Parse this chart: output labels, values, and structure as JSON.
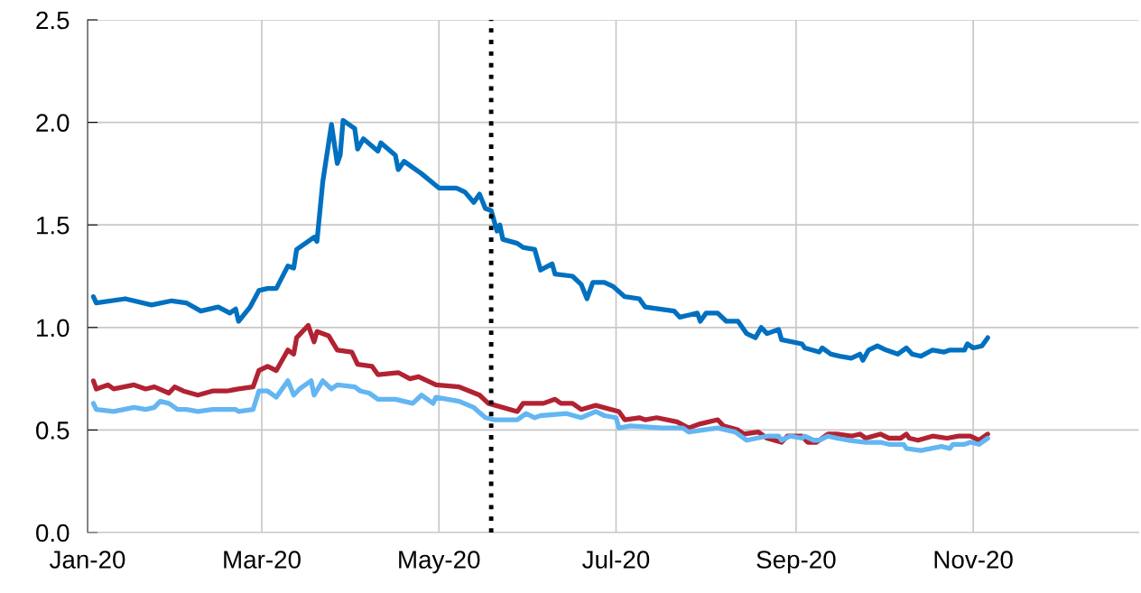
{
  "chart_data": {
    "type": "line",
    "xlim": [
      "2020-01-01",
      "2020-12-28"
    ],
    "xticks": [
      {
        "value": "2020-01-01",
        "label": "Jan-20"
      },
      {
        "value": "2020-03-01",
        "label": "Mar-20"
      },
      {
        "value": "2020-05-01",
        "label": "May-20"
      },
      {
        "value": "2020-07-01",
        "label": "Jul-20"
      },
      {
        "value": "2020-09-01",
        "label": "Sep-20"
      },
      {
        "value": "2020-11-01",
        "label": "Nov-20"
      }
    ],
    "ylim": [
      0,
      2.5
    ],
    "yticks": [
      {
        "value": 0,
        "label": "0.0"
      },
      0.5,
      {
        "value": 1,
        "label": "1.0"
      },
      1.5,
      {
        "value": 2,
        "label": "2.0"
      },
      2.5
    ],
    "grid": true,
    "marker": "none",
    "line_style": "solid",
    "ref_lines": [
      {
        "axis": "x",
        "value": "2020-05-19",
        "color": "#000000",
        "line_style": "dotted"
      }
    ],
    "series": [
      {
        "color": "#0070c0",
        "x": [
          "2020-01-03",
          "2020-01-04",
          "2020-01-14",
          "2020-01-23",
          "2020-01-30",
          "2020-02-04",
          "2020-02-09",
          "2020-02-15",
          "2020-02-19",
          "2020-02-21",
          "2020-02-22",
          "2020-02-26",
          "2020-02-29",
          "2020-03-03",
          "2020-03-06",
          "2020-03-10",
          "2020-03-12",
          "2020-03-13",
          "2020-03-19",
          "2020-03-20",
          "2020-03-22",
          "2020-03-25",
          "2020-03-27",
          "2020-03-28",
          "2020-03-29",
          "2020-04-02",
          "2020-04-03",
          "2020-04-05",
          "2020-04-10",
          "2020-04-11",
          "2020-04-16",
          "2020-04-17",
          "2020-04-19",
          "2020-04-25",
          "2020-05-01",
          "2020-05-07",
          "2020-05-10",
          "2020-05-13",
          "2020-05-15",
          "2020-05-17",
          "2020-05-19",
          "2020-05-21",
          "2020-05-22",
          "2020-05-23",
          "2020-05-28",
          "2020-05-30",
          "2020-06-03",
          "2020-06-05",
          "2020-06-09",
          "2020-06-10",
          "2020-06-16",
          "2020-06-19",
          "2020-06-21",
          "2020-06-23",
          "2020-06-27",
          "2020-06-30",
          "2020-07-04",
          "2020-07-09",
          "2020-07-11",
          "2020-07-16",
          "2020-07-21",
          "2020-07-23",
          "2020-07-29",
          "2020-07-30",
          "2020-08-01",
          "2020-08-05",
          "2020-08-08",
          "2020-08-12",
          "2020-08-15",
          "2020-08-18",
          "2020-08-20",
          "2020-08-22",
          "2020-08-26",
          "2020-08-27",
          "2020-09-03",
          "2020-09-04",
          "2020-09-09",
          "2020-09-10",
          "2020-09-13",
          "2020-09-16",
          "2020-09-20",
          "2020-09-23",
          "2020-09-24",
          "2020-09-26",
          "2020-09-29",
          "2020-10-02",
          "2020-10-06",
          "2020-10-09",
          "2020-10-11",
          "2020-10-14",
          "2020-10-18",
          "2020-10-22",
          "2020-10-24",
          "2020-10-29",
          "2020-10-30",
          "2020-11-01",
          "2020-11-04",
          "2020-11-06"
        ],
        "values": [
          1.15,
          1.12,
          1.14,
          1.11,
          1.13,
          1.12,
          1.08,
          1.1,
          1.07,
          1.09,
          1.03,
          1.1,
          1.18,
          1.19,
          1.19,
          1.3,
          1.29,
          1.38,
          1.44,
          1.42,
          1.71,
          1.99,
          1.8,
          1.84,
          2.01,
          1.97,
          1.87,
          1.92,
          1.86,
          1.9,
          1.84,
          1.77,
          1.81,
          1.75,
          1.68,
          1.68,
          1.66,
          1.61,
          1.65,
          1.58,
          1.57,
          1.47,
          1.5,
          1.43,
          1.41,
          1.39,
          1.38,
          1.28,
          1.31,
          1.26,
          1.25,
          1.21,
          1.14,
          1.22,
          1.22,
          1.2,
          1.15,
          1.14,
          1.1,
          1.09,
          1.08,
          1.05,
          1.07,
          1.03,
          1.07,
          1.07,
          1.03,
          1.03,
          0.97,
          0.95,
          1.0,
          0.97,
          0.99,
          0.94,
          0.92,
          0.9,
          0.88,
          0.9,
          0.87,
          0.86,
          0.85,
          0.87,
          0.84,
          0.89,
          0.91,
          0.89,
          0.87,
          0.9,
          0.87,
          0.86,
          0.89,
          0.88,
          0.89,
          0.89,
          0.92,
          0.9,
          0.91,
          0.95
        ]
      },
      {
        "color": "#b22232",
        "x": [
          "2020-01-03",
          "2020-01-04",
          "2020-01-08",
          "2020-01-10",
          "2020-01-17",
          "2020-01-21",
          "2020-01-24",
          "2020-01-29",
          "2020-01-31",
          "2020-02-03",
          "2020-02-08",
          "2020-02-13",
          "2020-02-18",
          "2020-02-22",
          "2020-02-27",
          "2020-02-29",
          "2020-03-03",
          "2020-03-06",
          "2020-03-10",
          "2020-03-12",
          "2020-03-13",
          "2020-03-17",
          "2020-03-19",
          "2020-03-20",
          "2020-03-24",
          "2020-03-27",
          "2020-04-01",
          "2020-04-03",
          "2020-04-08",
          "2020-04-10",
          "2020-04-17",
          "2020-04-21",
          "2020-04-24",
          "2020-04-30",
          "2020-05-08",
          "2020-05-15",
          "2020-05-18",
          "2020-05-28",
          "2020-05-30",
          "2020-06-06",
          "2020-06-10",
          "2020-06-12",
          "2020-06-16",
          "2020-06-19",
          "2020-06-24",
          "2020-07-02",
          "2020-07-04",
          "2020-07-09",
          "2020-07-11",
          "2020-07-15",
          "2020-07-22",
          "2020-07-26",
          "2020-07-30",
          "2020-08-05",
          "2020-08-07",
          "2020-08-12",
          "2020-08-14",
          "2020-08-19",
          "2020-08-22",
          "2020-08-27",
          "2020-08-29",
          "2020-09-03",
          "2020-09-05",
          "2020-09-08",
          "2020-09-12",
          "2020-09-15",
          "2020-09-20",
          "2020-09-23",
          "2020-09-25",
          "2020-09-30",
          "2020-10-03",
          "2020-10-07",
          "2020-10-09",
          "2020-10-10",
          "2020-10-13",
          "2020-10-18",
          "2020-10-23",
          "2020-10-27",
          "2020-10-31",
          "2020-11-03",
          "2020-11-06"
        ],
        "values": [
          0.74,
          0.7,
          0.72,
          0.7,
          0.72,
          0.7,
          0.71,
          0.68,
          0.71,
          0.69,
          0.67,
          0.69,
          0.69,
          0.7,
          0.71,
          0.79,
          0.81,
          0.79,
          0.89,
          0.87,
          0.95,
          1.01,
          0.93,
          0.98,
          0.96,
          0.89,
          0.88,
          0.82,
          0.81,
          0.77,
          0.78,
          0.75,
          0.76,
          0.72,
          0.71,
          0.67,
          0.63,
          0.59,
          0.63,
          0.63,
          0.65,
          0.63,
          0.63,
          0.6,
          0.62,
          0.59,
          0.55,
          0.56,
          0.55,
          0.56,
          0.54,
          0.51,
          0.53,
          0.55,
          0.52,
          0.5,
          0.48,
          0.49,
          0.46,
          0.44,
          0.47,
          0.47,
          0.44,
          0.44,
          0.48,
          0.48,
          0.47,
          0.48,
          0.46,
          0.48,
          0.46,
          0.46,
          0.48,
          0.46,
          0.45,
          0.47,
          0.46,
          0.47,
          0.47,
          0.45,
          0.48
        ]
      },
      {
        "color": "#63b6f2",
        "x": [
          "2020-01-03",
          "2020-01-04",
          "2020-01-10",
          "2020-01-17",
          "2020-01-21",
          "2020-01-24",
          "2020-01-26",
          "2020-01-29",
          "2020-02-01",
          "2020-02-04",
          "2020-02-08",
          "2020-02-13",
          "2020-02-21",
          "2020-02-22",
          "2020-02-27",
          "2020-02-29",
          "2020-03-03",
          "2020-03-06",
          "2020-03-10",
          "2020-03-12",
          "2020-03-14",
          "2020-03-18",
          "2020-03-19",
          "2020-03-22",
          "2020-03-25",
          "2020-03-27",
          "2020-04-02",
          "2020-04-04",
          "2020-04-07",
          "2020-04-10",
          "2020-04-16",
          "2020-04-22",
          "2020-04-25",
          "2020-04-29",
          "2020-04-30",
          "2020-05-08",
          "2020-05-13",
          "2020-05-17",
          "2020-05-20",
          "2020-05-28",
          "2020-05-30",
          "2020-05-31",
          "2020-06-03",
          "2020-06-05",
          "2020-06-14",
          "2020-06-19",
          "2020-06-24",
          "2020-06-27",
          "2020-07-01",
          "2020-07-02",
          "2020-07-06",
          "2020-07-17",
          "2020-07-24",
          "2020-07-26",
          "2020-08-05",
          "2020-08-11",
          "2020-08-15",
          "2020-08-22",
          "2020-08-26",
          "2020-08-27",
          "2020-08-30",
          "2020-09-03",
          "2020-09-04",
          "2020-09-07",
          "2020-09-09",
          "2020-09-12",
          "2020-09-15",
          "2020-09-19",
          "2020-09-25",
          "2020-09-30",
          "2020-10-03",
          "2020-10-08",
          "2020-10-09",
          "2020-10-14",
          "2020-10-21",
          "2020-10-24",
          "2020-10-25",
          "2020-10-29",
          "2020-10-31",
          "2020-11-03",
          "2020-11-06"
        ],
        "values": [
          0.63,
          0.6,
          0.59,
          0.61,
          0.6,
          0.61,
          0.64,
          0.63,
          0.6,
          0.6,
          0.59,
          0.6,
          0.6,
          0.59,
          0.6,
          0.69,
          0.69,
          0.66,
          0.74,
          0.67,
          0.7,
          0.74,
          0.67,
          0.74,
          0.7,
          0.72,
          0.71,
          0.69,
          0.68,
          0.65,
          0.65,
          0.63,
          0.67,
          0.63,
          0.66,
          0.64,
          0.61,
          0.56,
          0.55,
          0.55,
          0.57,
          0.58,
          0.56,
          0.57,
          0.58,
          0.56,
          0.59,
          0.57,
          0.56,
          0.51,
          0.52,
          0.51,
          0.51,
          0.49,
          0.51,
          0.49,
          0.45,
          0.47,
          0.47,
          0.45,
          0.47,
          0.46,
          0.47,
          0.45,
          0.45,
          0.47,
          0.46,
          0.45,
          0.44,
          0.44,
          0.43,
          0.43,
          0.41,
          0.4,
          0.42,
          0.41,
          0.43,
          0.43,
          0.44,
          0.43,
          0.46
        ]
      }
    ]
  }
}
